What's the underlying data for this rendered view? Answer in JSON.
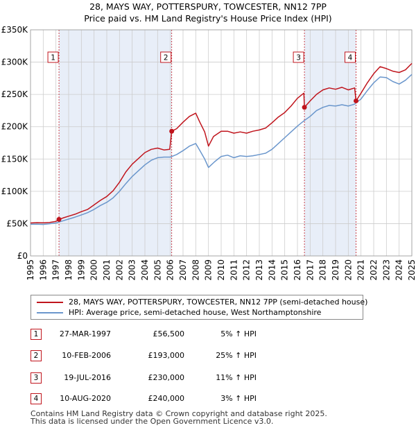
{
  "chart_data": {
    "type": "line",
    "title": "28, MAYS WAY, POTTERSPURY, TOWCESTER, NN12 7PP",
    "subtitle": "Price paid vs. HM Land Registry's House Price Index (HPI)",
    "ylim": [
      0,
      350000
    ],
    "xlim": [
      1995,
      2025
    ],
    "y_ticks": [
      0,
      50000,
      100000,
      150000,
      200000,
      250000,
      300000,
      350000
    ],
    "y_tick_labels": [
      "£0",
      "£50K",
      "£100K",
      "£150K",
      "£200K",
      "£250K",
      "£300K",
      "£350K"
    ],
    "x_ticks": [
      1995,
      1996,
      1997,
      1998,
      1999,
      2000,
      2001,
      2002,
      2003,
      2004,
      2005,
      2006,
      2007,
      2008,
      2009,
      2010,
      2011,
      2012,
      2013,
      2014,
      2015,
      2016,
      2017,
      2018,
      2019,
      2020,
      2021,
      2022,
      2023,
      2024,
      2025
    ],
    "grid": true,
    "series": [
      {
        "name": "28, MAYS WAY, POTTERSPURY, TOWCESTER, NN12 7PP (semi-detached house)",
        "color": "#c0141c",
        "points": [
          [
            1995.0,
            51000
          ],
          [
            1995.5,
            51500
          ],
          [
            1996.0,
            51200
          ],
          [
            1996.5,
            51800
          ],
          [
            1997.0,
            53500
          ],
          [
            1997.24,
            56500
          ],
          [
            1997.6,
            59000
          ],
          [
            1998.0,
            61500
          ],
          [
            1998.5,
            64500
          ],
          [
            1999.0,
            68500
          ],
          [
            1999.5,
            72000
          ],
          [
            2000.0,
            79000
          ],
          [
            2000.5,
            86000
          ],
          [
            2001.0,
            92000
          ],
          [
            2001.5,
            101000
          ],
          [
            2002.0,
            114000
          ],
          [
            2002.5,
            130000
          ],
          [
            2003.0,
            142000
          ],
          [
            2003.5,
            151000
          ],
          [
            2004.0,
            160000
          ],
          [
            2004.5,
            165000
          ],
          [
            2005.0,
            167000
          ],
          [
            2005.5,
            164000
          ],
          [
            2005.95,
            165000
          ],
          [
            2006.11,
            193000
          ],
          [
            2006.5,
            197000
          ],
          [
            2007.0,
            207000
          ],
          [
            2007.5,
            216000
          ],
          [
            2008.0,
            221000
          ],
          [
            2008.3,
            208000
          ],
          [
            2008.7,
            192000
          ],
          [
            2009.0,
            170000
          ],
          [
            2009.4,
            185000
          ],
          [
            2010.0,
            193000
          ],
          [
            2010.5,
            193000
          ],
          [
            2011.0,
            190000
          ],
          [
            2011.5,
            192000
          ],
          [
            2012.0,
            190000
          ],
          [
            2012.5,
            193000
          ],
          [
            2013.0,
            195000
          ],
          [
            2013.5,
            198000
          ],
          [
            2014.0,
            206000
          ],
          [
            2014.5,
            215000
          ],
          [
            2015.0,
            222000
          ],
          [
            2015.5,
            232000
          ],
          [
            2016.0,
            244000
          ],
          [
            2016.5,
            252000
          ],
          [
            2016.55,
            230000
          ],
          [
            2017.0,
            240000
          ],
          [
            2017.5,
            250000
          ],
          [
            2018.0,
            257000
          ],
          [
            2018.5,
            260000
          ],
          [
            2019.0,
            258000
          ],
          [
            2019.5,
            261000
          ],
          [
            2020.0,
            257000
          ],
          [
            2020.5,
            260000
          ],
          [
            2020.61,
            240000
          ],
          [
            2021.0,
            252000
          ],
          [
            2021.5,
            268000
          ],
          [
            2022.0,
            282000
          ],
          [
            2022.5,
            293000
          ],
          [
            2023.0,
            290000
          ],
          [
            2023.5,
            286000
          ],
          [
            2024.0,
            284000
          ],
          [
            2024.5,
            288000
          ],
          [
            2025.0,
            298000
          ]
        ]
      },
      {
        "name": "HPI: Average price, semi-detached house, West Northamptonshire",
        "color": "#6a96cc",
        "points": [
          [
            1995.0,
            49000
          ],
          [
            1995.5,
            49200
          ],
          [
            1996.0,
            48700
          ],
          [
            1996.5,
            49800
          ],
          [
            1997.0,
            51000
          ],
          [
            1997.5,
            54000
          ],
          [
            1998.0,
            57000
          ],
          [
            1998.5,
            60000
          ],
          [
            1999.0,
            63500
          ],
          [
            1999.5,
            67000
          ],
          [
            2000.0,
            72000
          ],
          [
            2000.5,
            78000
          ],
          [
            2001.0,
            83000
          ],
          [
            2001.5,
            90000
          ],
          [
            2002.0,
            100000
          ],
          [
            2002.5,
            112000
          ],
          [
            2003.0,
            123000
          ],
          [
            2003.5,
            132000
          ],
          [
            2004.0,
            141000
          ],
          [
            2004.5,
            148000
          ],
          [
            2005.0,
            152000
          ],
          [
            2005.5,
            153000
          ],
          [
            2006.0,
            153000
          ],
          [
            2006.5,
            157000
          ],
          [
            2007.0,
            163000
          ],
          [
            2007.5,
            170000
          ],
          [
            2008.0,
            174000
          ],
          [
            2008.3,
            164000
          ],
          [
            2008.7,
            150000
          ],
          [
            2009.0,
            137000
          ],
          [
            2009.5,
            146000
          ],
          [
            2010.0,
            154000
          ],
          [
            2010.5,
            156000
          ],
          [
            2011.0,
            152000
          ],
          [
            2011.5,
            155000
          ],
          [
            2012.0,
            154000
          ],
          [
            2012.5,
            155000
          ],
          [
            2013.0,
            157000
          ],
          [
            2013.5,
            159000
          ],
          [
            2014.0,
            165000
          ],
          [
            2014.5,
            174000
          ],
          [
            2015.0,
            183000
          ],
          [
            2015.5,
            192000
          ],
          [
            2016.0,
            201000
          ],
          [
            2016.5,
            209000
          ],
          [
            2017.0,
            216000
          ],
          [
            2017.5,
            225000
          ],
          [
            2018.0,
            230000
          ],
          [
            2018.5,
            233000
          ],
          [
            2019.0,
            232000
          ],
          [
            2019.5,
            234000
          ],
          [
            2020.0,
            232000
          ],
          [
            2020.5,
            235000
          ],
          [
            2021.0,
            243000
          ],
          [
            2021.5,
            256000
          ],
          [
            2022.0,
            268000
          ],
          [
            2022.5,
            277000
          ],
          [
            2023.0,
            276000
          ],
          [
            2023.5,
            270000
          ],
          [
            2024.0,
            266000
          ],
          [
            2024.5,
            272000
          ],
          [
            2025.0,
            281000
          ]
        ]
      }
    ],
    "sales": [
      {
        "label": "1",
        "date": 1997.24,
        "price": 56500
      },
      {
        "label": "2",
        "date": 2006.11,
        "price": 193000
      },
      {
        "label": "3",
        "date": 2016.55,
        "price": 230000
      },
      {
        "label": "4",
        "date": 2020.61,
        "price": 240000
      }
    ]
  },
  "legend": {
    "series1": "28, MAYS WAY, POTTERSPURY, TOWCESTER, NN12 7PP (semi-detached house)",
    "series2": "HPI: Average price, semi-detached house, West Northamptonshire"
  },
  "transactions": [
    {
      "num": "1",
      "date": "27-MAR-1997",
      "price": "£56,500",
      "hpi": "5% ↑ HPI"
    },
    {
      "num": "2",
      "date": "10-FEB-2006",
      "price": "£193,000",
      "hpi": "25% ↑ HPI"
    },
    {
      "num": "3",
      "date": "19-JUL-2016",
      "price": "£230,000",
      "hpi": "11% ↑ HPI"
    },
    {
      "num": "4",
      "date": "10-AUG-2020",
      "price": "£240,000",
      "hpi": "3% ↑ HPI"
    }
  ],
  "footer": {
    "line1": "Contains HM Land Registry data © Crown copyright and database right 2025.",
    "line2": "This data is licensed under the Open Government Licence v3.0."
  },
  "colors": {
    "red": "#c0141c",
    "blue": "#6a96cc",
    "shade": "#e8eef8",
    "grid": "#cccccc"
  }
}
